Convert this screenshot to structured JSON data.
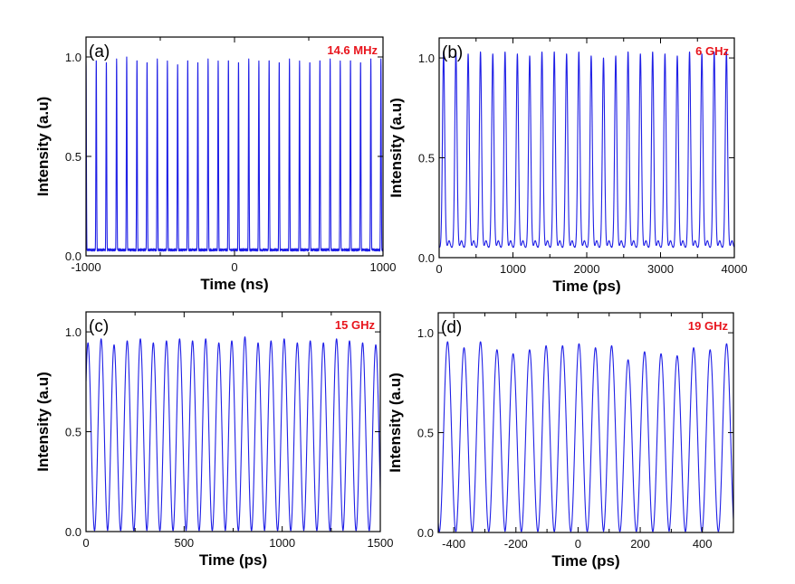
{
  "colors": {
    "trace": "#1f1fe6",
    "label": "#e8141c",
    "axis": "#000000"
  },
  "chart_data": [
    {
      "type": "line",
      "panel": "(a)",
      "annotation": "14.6 MHz",
      "xlabel": "Time (ns)",
      "ylabel": "Intensity (a.u)",
      "xlim": [
        -1000,
        1000
      ],
      "ylim": [
        0,
        1.1
      ],
      "xticks": [
        -1000,
        -500,
        0,
        500,
        1000
      ],
      "xtick_labels": [
        "-1000",
        "",
        "0",
        "",
        "1000"
      ],
      "yticks": [
        0,
        0.5,
        1.0
      ],
      "ytick_labels": [
        "0.0",
        "0.5",
        "1.0"
      ],
      "waveform": "pulse-train",
      "baseline": 0.03,
      "peak_times": [
        -1000,
        -931,
        -863,
        -794,
        -726,
        -657,
        -589,
        -520,
        -452,
        -383,
        -315,
        -247,
        -178,
        -110,
        -41,
        27,
        96,
        164,
        233,
        301,
        370,
        438,
        507,
        575,
        644,
        712,
        781,
        849,
        918,
        986
      ],
      "peak_values": [
        0.98,
        0.99,
        0.98,
        0.99,
        1.0,
        0.99,
        0.98,
        0.99,
        0.98,
        0.97,
        0.99,
        0.98,
        0.99,
        0.98,
        0.99,
        0.98,
        0.99,
        0.98,
        0.99,
        0.98,
        0.99,
        0.98,
        0.98,
        0.99,
        0.99,
        0.98,
        0.99,
        0.98,
        0.99,
        0.99
      ]
    },
    {
      "type": "line",
      "panel": "(b)",
      "annotation": "6 GHz",
      "xlabel": "Time (ps)",
      "ylabel": "Intensity (a.u)",
      "xlim": [
        0,
        4000
      ],
      "ylim": [
        0,
        1.1
      ],
      "xticks": [
        0,
        500,
        1000,
        1500,
        2000,
        2500,
        3000,
        3500,
        4000
      ],
      "xtick_labels": [
        "0",
        "",
        "1000",
        "",
        "2000",
        "",
        "3000",
        "",
        "4000"
      ],
      "yticks": [
        0,
        0.5,
        1.0
      ],
      "ytick_labels": [
        "0.0",
        "0.5",
        "1.0"
      ],
      "waveform": "pulse-train",
      "baseline": 0.05,
      "peak_times": [
        60,
        227,
        393,
        560,
        727,
        893,
        1060,
        1227,
        1393,
        1560,
        1727,
        1893,
        2060,
        2227,
        2393,
        2560,
        2727,
        2893,
        3060,
        3227,
        3393,
        3560,
        3727,
        3893
      ],
      "peak_values": [
        0.98,
        0.98,
        0.97,
        0.98,
        0.97,
        0.98,
        0.97,
        0.96,
        0.98,
        0.98,
        0.97,
        0.98,
        0.96,
        0.95,
        0.96,
        0.98,
        0.97,
        0.98,
        0.97,
        0.96,
        0.98,
        0.97,
        0.98,
        0.98
      ]
    },
    {
      "type": "line",
      "panel": "(c)",
      "annotation": "15 GHz",
      "xlabel": "Time (ps)",
      "ylabel": "Intensity (a.u)",
      "xlim": [
        0,
        1500
      ],
      "ylim": [
        0,
        1.1
      ],
      "xticks": [
        0,
        250,
        500,
        750,
        1000,
        1250,
        1500
      ],
      "xtick_labels": [
        "0",
        "",
        "500",
        "",
        "1000",
        "",
        "1500"
      ],
      "yticks": [
        0,
        0.5,
        1.0
      ],
      "ytick_labels": [
        "0.0",
        "0.5",
        "1.0"
      ],
      "waveform": "sinusoid",
      "peak_times": [
        10,
        77,
        143,
        210,
        277,
        343,
        410,
        477,
        543,
        610,
        677,
        743,
        810,
        877,
        943,
        1010,
        1077,
        1143,
        1210,
        1277,
        1343,
        1410,
        1477
      ],
      "peak_values": [
        0.94,
        0.96,
        0.93,
        0.95,
        0.96,
        0.94,
        0.95,
        0.96,
        0.95,
        0.96,
        0.94,
        0.95,
        0.97,
        0.94,
        0.95,
        0.96,
        0.94,
        0.95,
        0.94,
        0.96,
        0.95,
        0.94,
        0.93
      ]
    },
    {
      "type": "line",
      "panel": "(d)",
      "annotation": "19 GHz",
      "xlabel": "Time (ps)",
      "ylabel": "Intensity (a.u)",
      "xlim": [
        -450,
        500
      ],
      "ylim": [
        0,
        1.1
      ],
      "xticks": [
        -400,
        -300,
        -200,
        -100,
        0,
        100,
        200,
        300,
        400
      ],
      "xtick_labels": [
        "-400",
        "",
        "-200",
        "",
        "0",
        "",
        "200",
        "",
        "400"
      ],
      "yticks": [
        0,
        0.5,
        1.0
      ],
      "ytick_labels": [
        "0.0",
        "0.5",
        "1.0"
      ],
      "waveform": "sinusoid",
      "peak_times": [
        -420,
        -367,
        -314,
        -261,
        -209,
        -156,
        -103,
        -50,
        3,
        56,
        108,
        161,
        214,
        267,
        319,
        372,
        425,
        478
      ],
      "peak_values": [
        0.95,
        0.92,
        0.95,
        0.91,
        0.89,
        0.91,
        0.93,
        0.93,
        0.94,
        0.92,
        0.93,
        0.86,
        0.9,
        0.89,
        0.88,
        0.92,
        0.91,
        0.94
      ]
    }
  ]
}
